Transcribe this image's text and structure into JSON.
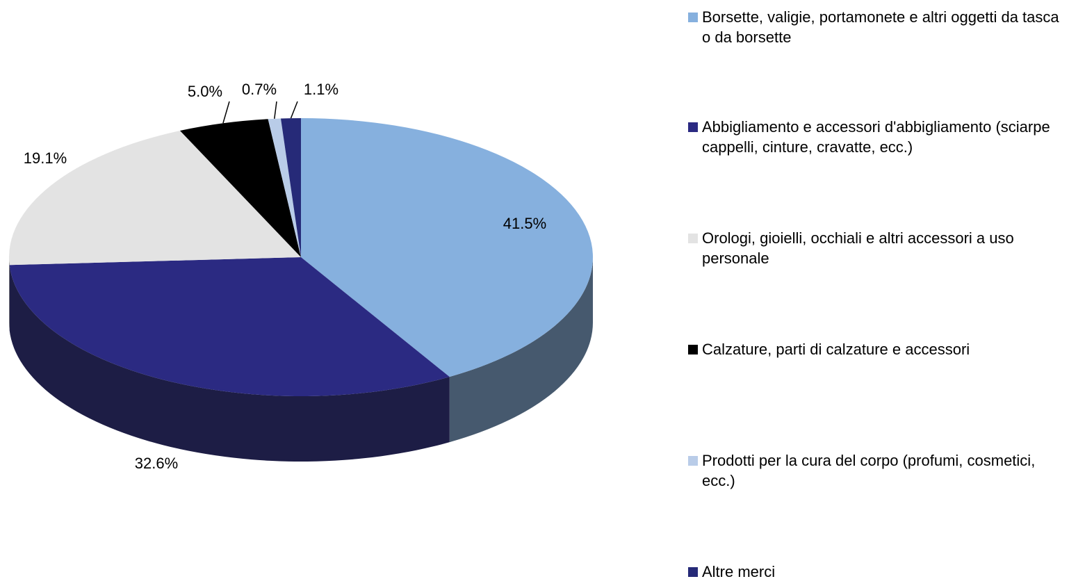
{
  "chart_data": {
    "type": "pie",
    "categories": [
      "Borsette, valigie, portamonete e altri oggetti da tasca o da borsette",
      "Abbigliamento e accessori d'abbigliamento (sciarpe cappelli, cinture, cravatte, ecc.)",
      "Orologi, gioielli, occhiali  e altri accessori a uso personale",
      "Calzature, parti di calzature e accessori",
      "Prodotti per la cura del corpo (profumi, cosmetici, ecc.)",
      "Altre merci"
    ],
    "values": [
      41.5,
      32.6,
      19.1,
      5.0,
      0.7,
      1.1
    ],
    "value_labels": [
      "41.5%",
      "32.6%",
      "19.1%",
      "5.0%",
      "0.7%",
      "1.1%"
    ],
    "colors": [
      "#86b0de",
      "#2b2a82",
      "#e3e3e3",
      "#000000",
      "#b9cce8",
      "#262a78"
    ]
  }
}
